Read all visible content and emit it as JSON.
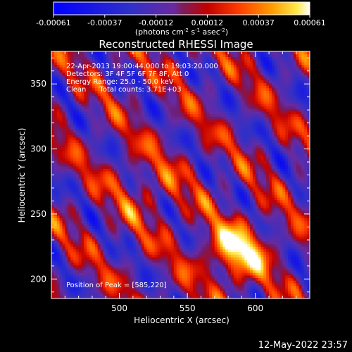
{
  "colorbar": {
    "ticks": [
      "-0.00061",
      "-0.00037",
      "-0.00012",
      "0.00012",
      "0.00037",
      "0.00061"
    ],
    "units_prefix": "(photons cm",
    "units_exp1": "-2",
    "units_mid": " s",
    "units_exp2": "-1",
    "units_mid2": " asec",
    "units_exp3": "-2",
    "units_suffix": ")"
  },
  "chart_data": {
    "type": "heatmap",
    "title": "Reconstructed RHESSI Image",
    "xlabel": "Heliocentric X (arcsec)",
    "ylabel": "Heliocentric Y (arcsec)",
    "xlim": [
      450,
      640
    ],
    "ylim": [
      185,
      375
    ],
    "xticks": [
      500,
      550,
      600
    ],
    "yticks": [
      200,
      250,
      300,
      350
    ],
    "clim": [
      -0.00061,
      0.00061
    ],
    "colormap": "blue-purple-red-yellow-white",
    "peak": [
      585,
      220
    ],
    "annotations": {
      "line1": "22-Apr-2013 19:00:44.000 to 19:03:20.000",
      "line2": "Detectors: 3F 4F 5F 6F 7F 8F, Att 0",
      "line3": "Energy Range: 25.0 - 50.0 keV",
      "line4": "Clean      Total counts: 3.71E+03",
      "peak_label": "Position of Peak = [585,220]"
    }
  },
  "footer": {
    "date": "12-May-2022 23:57"
  }
}
